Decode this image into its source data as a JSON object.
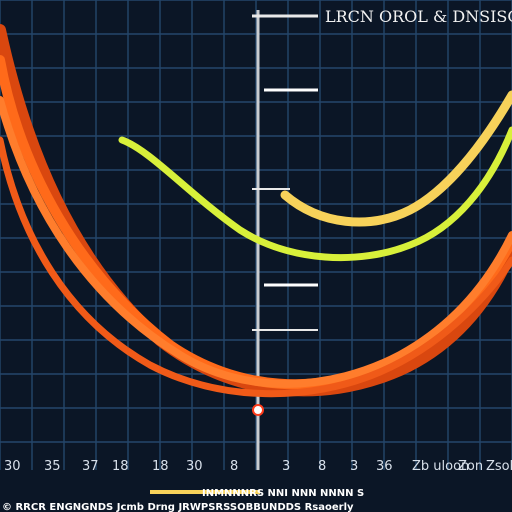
{
  "title": "LRCN OROL & DNSISCO",
  "colors": {
    "background": "#0b1626",
    "grid": "#24466b",
    "axis": "#c9ccd0",
    "orange": "#ff6a1a",
    "orange_dark": "#d9470f",
    "yellow": "#f7d25a",
    "lime": "#d8f03a",
    "footer_bar": "#ffffff"
  },
  "footer_text": "© RRCR ENGNGNDS Jcmb Drng  JRWPSRSSOBBUNDDS Rsaoerly",
  "legend_text": "INMNNNRS  NNI  NNN  NNNN S",
  "chart_data": {
    "type": "line",
    "title": "LRCN OROL & DNSISCO",
    "xlabel": "",
    "ylabel": "",
    "grid": true,
    "tick_labels": [
      "30",
      "35",
      "37",
      "18",
      "18",
      "30",
      "8",
      "3",
      "8",
      "3",
      "36",
      "Zb uloon",
      "Zon",
      "Zsobjuon"
    ],
    "series": [
      {
        "values": [
          [
            0,
            20
          ],
          [
            20,
            10
          ],
          [
            40,
            35
          ],
          [
            60,
            80
          ],
          [
            80,
            100
          ],
          [
            100,
            95
          ],
          [
            120,
            75
          ],
          [
            140,
            40
          ],
          [
            160,
            15
          ],
          [
            180,
            5
          ],
          [
            200,
            0
          ],
          [
            220,
            2
          ],
          [
            240,
            5
          ],
          [
            260,
            10
          ],
          [
            280,
            20
          ],
          [
            300,
            35
          ],
          [
            320,
            55
          ],
          [
            340,
            80
          ],
          [
            360,
            110
          ],
          [
            380,
            145
          ],
          [
            400,
            185
          ],
          [
            420,
            230
          ],
          [
            440,
            275
          ],
          [
            460,
            330
          ],
          [
            480,
            390
          ],
          [
            500,
            450
          ]
        ]
      },
      {
        "values": [
          [
            0,
            25
          ],
          [
            20,
            20
          ],
          [
            40,
            40
          ],
          [
            60,
            78
          ],
          [
            80,
            95
          ],
          [
            100,
            85
          ],
          [
            120,
            62
          ],
          [
            140,
            35
          ],
          [
            160,
            15
          ],
          [
            180,
            6
          ],
          [
            200,
            2
          ],
          [
            220,
            4
          ],
          [
            240,
            8
          ],
          [
            260,
            15
          ],
          [
            280,
            26
          ],
          [
            300,
            42
          ],
          [
            320,
            62
          ],
          [
            340,
            88
          ],
          [
            360,
            118
          ],
          [
            380,
            152
          ],
          [
            400,
            190
          ],
          [
            420,
            232
          ],
          [
            440,
            270
          ],
          [
            460,
            325
          ],
          [
            480,
            385
          ],
          [
            500,
            440
          ]
        ]
      },
      {
        "values": [
          [
            0,
            30
          ],
          [
            20,
            25
          ],
          [
            40,
            50
          ],
          [
            60,
            70
          ],
          [
            80,
            80
          ],
          [
            100,
            75
          ],
          [
            120,
            55
          ],
          [
            140,
            30
          ],
          [
            160,
            16
          ],
          [
            180,
            8
          ],
          [
            200,
            6
          ],
          [
            220,
            8
          ],
          [
            240,
            14
          ],
          [
            260,
            22
          ],
          [
            280,
            35
          ],
          [
            300,
            52
          ],
          [
            320,
            72
          ],
          [
            340,
            98
          ],
          [
            360,
            128
          ],
          [
            380,
            162
          ],
          [
            400,
            198
          ],
          [
            420,
            238
          ],
          [
            440,
            282
          ],
          [
            460,
            330
          ],
          [
            480,
            380
          ],
          [
            500,
            430
          ]
        ]
      }
    ]
  }
}
